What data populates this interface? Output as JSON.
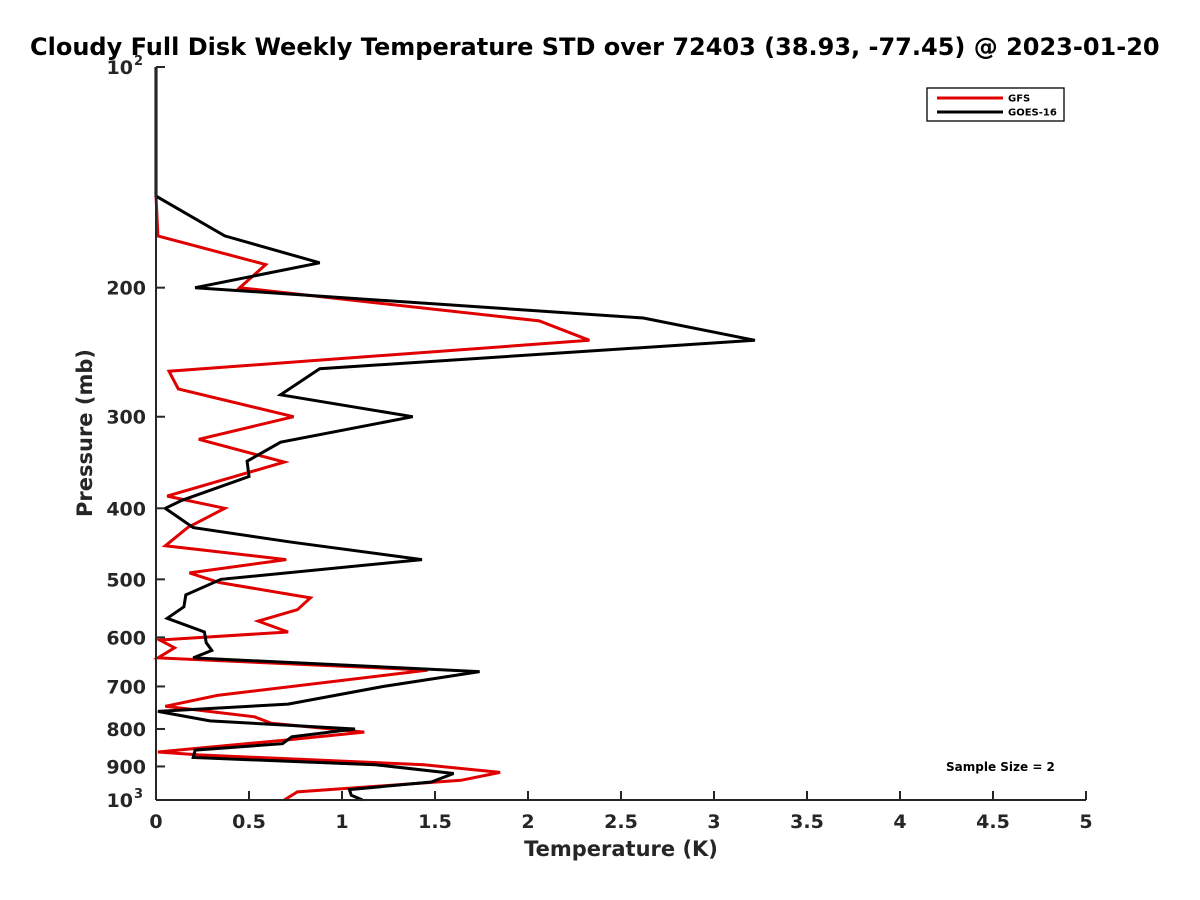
{
  "chart_data": {
    "type": "line",
    "title": "Cloudy Full Disk Weekly Temperature STD over 72403 (38.93, -77.45) @ 2023-01-20",
    "xlabel": "Temperature (K)",
    "ylabel": "Pressure (mb)",
    "xlim": [
      0,
      5
    ],
    "ylim": [
      100,
      1000
    ],
    "y_scale": "log",
    "y_reversed": true,
    "x_ticks": [
      {
        "value": 0,
        "label": "0"
      },
      {
        "value": 0.5,
        "label": "0.5"
      },
      {
        "value": 1,
        "label": "1"
      },
      {
        "value": 1.5,
        "label": "1.5"
      },
      {
        "value": 2,
        "label": "2"
      },
      {
        "value": 2.5,
        "label": "2.5"
      },
      {
        "value": 3,
        "label": "3"
      },
      {
        "value": 3.5,
        "label": "3.5"
      },
      {
        "value": 4,
        "label": "4"
      },
      {
        "value": 4.5,
        "label": "4.5"
      },
      {
        "value": 5,
        "label": "5"
      }
    ],
    "y_ticks": [
      {
        "value": 100,
        "label": "10",
        "exp": "2"
      },
      {
        "value": 200,
        "label": "200"
      },
      {
        "value": 300,
        "label": "300"
      },
      {
        "value": 400,
        "label": "400"
      },
      {
        "value": 500,
        "label": "500"
      },
      {
        "value": 600,
        "label": "600"
      },
      {
        "value": 700,
        "label": "700"
      },
      {
        "value": 800,
        "label": "800"
      },
      {
        "value": 900,
        "label": "900"
      },
      {
        "value": 1000,
        "label": "10",
        "exp": "3"
      }
    ],
    "grid": false,
    "legend_position": "top-right",
    "annotation": "Sample Size = 2",
    "series": [
      {
        "name": "GFS",
        "color": "#e00000",
        "points": [
          [
            0,
            100
          ],
          [
            0,
            150
          ],
          [
            0.01,
            170
          ],
          [
            0.59,
            186
          ],
          [
            0.45,
            200
          ],
          [
            2.06,
            222
          ],
          [
            2.33,
            236
          ],
          [
            0.07,
            260
          ],
          [
            0.12,
            275
          ],
          [
            0.74,
            300
          ],
          [
            0.23,
            322
          ],
          [
            0.69,
            346
          ],
          [
            0.06,
            385
          ],
          [
            0.37,
            400
          ],
          [
            0.17,
            425
          ],
          [
            0.05,
            450
          ],
          [
            0.7,
            470
          ],
          [
            0.18,
            490
          ],
          [
            0.34,
            505
          ],
          [
            0.83,
            530
          ],
          [
            0.76,
            550
          ],
          [
            0.55,
            570
          ],
          [
            0.71,
            590
          ],
          [
            0.02,
            605
          ],
          [
            0.1,
            620
          ],
          [
            0.01,
            640
          ],
          [
            1.46,
            665
          ],
          [
            0.33,
            720
          ],
          [
            0.05,
            745
          ],
          [
            0.53,
            770
          ],
          [
            0.62,
            786
          ],
          [
            1.12,
            808
          ],
          [
            0.66,
            830
          ],
          [
            0.01,
            860
          ],
          [
            0.23,
            868
          ],
          [
            1.44,
            895
          ],
          [
            1.85,
            917
          ],
          [
            1.64,
            940
          ],
          [
            0.76,
            975
          ],
          [
            0.69,
            1000
          ]
        ]
      },
      {
        "name": "GOES-16",
        "color": "#000000",
        "points": [
          [
            0,
            100
          ],
          [
            0,
            150
          ],
          [
            0.37,
            170
          ],
          [
            0.88,
            185
          ],
          [
            0.21,
            200
          ],
          [
            2.62,
            220
          ],
          [
            3.22,
            236
          ],
          [
            0.88,
            258
          ],
          [
            0.67,
            280
          ],
          [
            1.38,
            300
          ],
          [
            0.67,
            325
          ],
          [
            0.49,
            345
          ],
          [
            0.5,
            362
          ],
          [
            0.14,
            390
          ],
          [
            0.05,
            400
          ],
          [
            0.2,
            425
          ],
          [
            0.73,
            445
          ],
          [
            1.43,
            470
          ],
          [
            0.35,
            500
          ],
          [
            0.16,
            525
          ],
          [
            0.15,
            545
          ],
          [
            0.06,
            565
          ],
          [
            0.26,
            590
          ],
          [
            0.27,
            610
          ],
          [
            0.3,
            625
          ],
          [
            0.2,
            640
          ],
          [
            1.74,
            668
          ],
          [
            1.22,
            700
          ],
          [
            0.71,
            740
          ],
          [
            0.01,
            757
          ],
          [
            0.29,
            780
          ],
          [
            1.07,
            800
          ],
          [
            0.73,
            820
          ],
          [
            0.68,
            838
          ],
          [
            0.21,
            855
          ],
          [
            0.2,
            875
          ],
          [
            1.18,
            895
          ],
          [
            1.6,
            920
          ],
          [
            1.48,
            945
          ],
          [
            1.04,
            968
          ],
          [
            1.05,
            985
          ],
          [
            1.11,
            1000
          ]
        ]
      }
    ]
  }
}
